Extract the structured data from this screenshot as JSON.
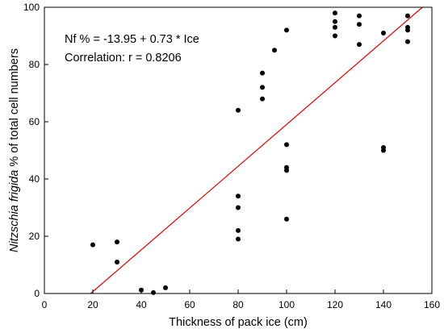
{
  "chart_data": {
    "type": "scatter",
    "xlabel": "Thickness of pack ice (cm)",
    "ylabel_italic": "Nitzschia frigida",
    "ylabel_rest": " % of total cell numbers",
    "xlim": [
      0,
      160
    ],
    "ylim": [
      0,
      100
    ],
    "xticks": [
      0,
      20,
      40,
      60,
      80,
      100,
      120,
      140,
      160
    ],
    "yticks": [
      0,
      20,
      40,
      60,
      80,
      100
    ],
    "grid": false,
    "annotations": [
      "Nf %  = -13.95 + 0.73 * Ice",
      "Correlation: r = 0.8206"
    ],
    "point_color": "#000000",
    "fit_line": {
      "intercept": -13.95,
      "slope": 0.73,
      "color": "#e00000"
    },
    "points": [
      [
        20,
        17
      ],
      [
        30,
        18
      ],
      [
        30,
        11
      ],
      [
        40,
        1.2
      ],
      [
        45,
        0.3
      ],
      [
        50,
        2
      ],
      [
        80,
        64
      ],
      [
        80,
        34
      ],
      [
        80,
        30
      ],
      [
        80,
        22
      ],
      [
        80,
        19
      ],
      [
        90,
        77
      ],
      [
        90,
        72
      ],
      [
        90,
        68
      ],
      [
        95,
        85
      ],
      [
        100,
        92
      ],
      [
        100,
        52
      ],
      [
        100,
        44
      ],
      [
        100,
        43
      ],
      [
        100,
        26
      ],
      [
        120,
        98
      ],
      [
        120,
        95
      ],
      [
        120,
        93
      ],
      [
        120,
        90
      ],
      [
        130,
        97
      ],
      [
        130,
        94
      ],
      [
        130,
        87
      ],
      [
        140,
        91
      ],
      [
        140,
        51
      ],
      [
        140,
        50
      ],
      [
        150,
        97
      ],
      [
        150,
        93
      ],
      [
        150,
        92
      ],
      [
        150,
        88
      ]
    ]
  }
}
